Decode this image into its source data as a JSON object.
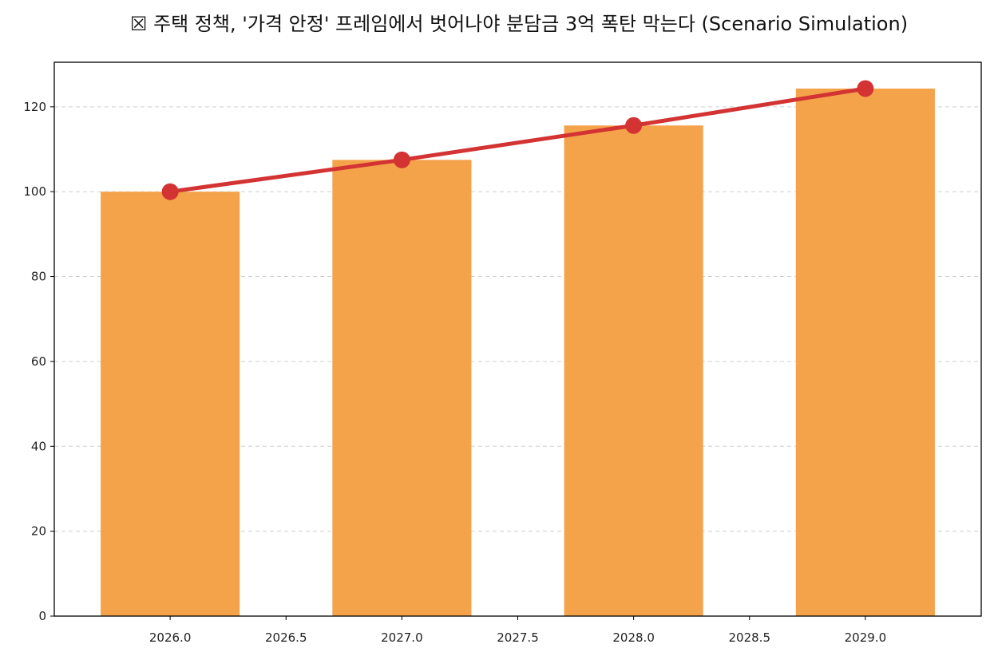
{
  "chart_data": {
    "type": "bar",
    "title": "☒ 주택 정책, '가격 안정' 프레임에서 벗어나야 분담금 3억 폭탄 막는다 (Scenario Simulation)",
    "xlabel": "",
    "ylabel": "",
    "x": [
      2026,
      2027,
      2028,
      2029
    ],
    "bar_values": [
      100,
      107.5,
      115.6,
      124.3
    ],
    "line_values": [
      100,
      107.5,
      115.6,
      124.3
    ],
    "bar_width": 0.6,
    "xlim": [
      2025.5,
      2029.5
    ],
    "ylim": [
      0,
      130.5
    ],
    "x_ticks": [
      "2026.0",
      "2026.5",
      "2027.0",
      "2027.5",
      "2028.0",
      "2028.5",
      "2029.0"
    ],
    "x_tick_values": [
      2026.0,
      2026.5,
      2027.0,
      2027.5,
      2028.0,
      2028.5,
      2029.0
    ],
    "y_ticks": [
      "0",
      "20",
      "40",
      "60",
      "80",
      "100",
      "120"
    ],
    "y_tick_values": [
      0,
      20,
      40,
      60,
      80,
      100,
      120
    ],
    "grid": "y-dashed",
    "colors": {
      "bar": "#F5A34B",
      "line": "#D33333",
      "grid": "#D0D0D0",
      "axis": "#000000"
    }
  }
}
